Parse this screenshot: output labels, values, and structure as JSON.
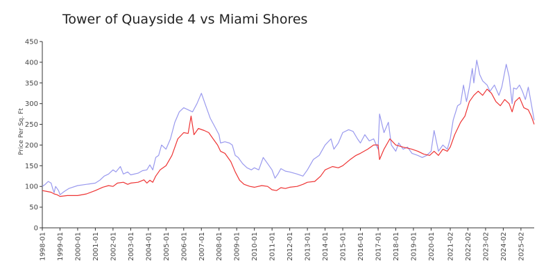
{
  "chart_data": {
    "type": "line",
    "title": "Tower of Quayside 4 vs Miami Shores",
    "xlabel": "",
    "ylabel": "Price Per Sq. Ft",
    "ylim": [
      0,
      450
    ],
    "y_ticks": [
      "0",
      "50",
      "100",
      "150",
      "200",
      "250",
      "300",
      "350",
      "400",
      "450"
    ],
    "x_range": [
      "1998-01",
      "2025-11"
    ],
    "x_ticks": [
      "1998-01",
      "1999-01",
      "2000-01",
      "2001-01",
      "2002-01",
      "2003-01",
      "2004-01",
      "2005-01",
      "2006-01",
      "2007-01",
      "2008-01",
      "2009-01",
      "2010-01",
      "2011-01",
      "2012-01",
      "2013-01",
      "2014-01",
      "2015-01",
      "2016-01",
      "2017-01",
      "2018-01",
      "2019-01",
      "2020-01",
      "2021-02",
      "2022-02",
      "2023-02",
      "2024-02",
      "2025-02"
    ],
    "grid": false,
    "series": [
      {
        "color": "#9999ee",
        "points": [
          [
            "1998-01",
            100
          ],
          [
            "1998-03",
            105
          ],
          [
            "1998-05",
            112
          ],
          [
            "1998-07",
            108
          ],
          [
            "1998-08",
            95
          ],
          [
            "1998-09",
            85
          ],
          [
            "1998-10",
            100
          ],
          [
            "1998-12",
            90
          ],
          [
            "1999-01",
            80
          ],
          [
            "1999-04",
            88
          ],
          [
            "1999-07",
            95
          ],
          [
            "2000-01",
            102
          ],
          [
            "2000-07",
            105
          ],
          [
            "2001-01",
            108
          ],
          [
            "2001-04",
            115
          ],
          [
            "2001-07",
            125
          ],
          [
            "2001-10",
            130
          ],
          [
            "2002-01",
            140
          ],
          [
            "2002-03",
            135
          ],
          [
            "2002-06",
            148
          ],
          [
            "2002-08",
            130
          ],
          [
            "2002-11",
            135
          ],
          [
            "2003-01",
            128
          ],
          [
            "2003-06",
            132
          ],
          [
            "2003-09",
            138
          ],
          [
            "2003-12",
            140
          ],
          [
            "2004-02",
            152
          ],
          [
            "2004-04",
            140
          ],
          [
            "2004-06",
            170
          ],
          [
            "2004-08",
            175
          ],
          [
            "2004-10",
            200
          ],
          [
            "2005-01",
            190
          ],
          [
            "2005-04",
            215
          ],
          [
            "2005-07",
            255
          ],
          [
            "2005-10",
            280
          ],
          [
            "2006-01",
            290
          ],
          [
            "2006-04",
            285
          ],
          [
            "2006-07",
            280
          ],
          [
            "2006-10",
            300
          ],
          [
            "2007-01",
            325
          ],
          [
            "2007-04",
            295
          ],
          [
            "2007-07",
            265
          ],
          [
            "2007-10",
            245
          ],
          [
            "2008-01",
            225
          ],
          [
            "2008-02",
            205
          ],
          [
            "2008-05",
            208
          ],
          [
            "2008-08",
            205
          ],
          [
            "2008-10",
            200
          ],
          [
            "2008-12",
            175
          ],
          [
            "2009-02",
            170
          ],
          [
            "2009-05",
            155
          ],
          [
            "2009-08",
            145
          ],
          [
            "2009-11",
            140
          ],
          [
            "2010-01",
            145
          ],
          [
            "2010-04",
            140
          ],
          [
            "2010-07",
            170
          ],
          [
            "2010-10",
            155
          ],
          [
            "2011-01",
            140
          ],
          [
            "2011-03",
            120
          ],
          [
            "2011-05",
            130
          ],
          [
            "2011-07",
            143
          ],
          [
            "2011-10",
            137
          ],
          [
            "2012-01",
            135
          ],
          [
            "2012-06",
            130
          ],
          [
            "2012-10",
            125
          ],
          [
            "2013-01",
            140
          ],
          [
            "2013-05",
            165
          ],
          [
            "2013-09",
            175
          ],
          [
            "2014-01",
            200
          ],
          [
            "2014-05",
            215
          ],
          [
            "2014-07",
            190
          ],
          [
            "2014-10",
            205
          ],
          [
            "2015-01",
            230
          ],
          [
            "2015-05",
            237
          ],
          [
            "2015-08",
            233
          ],
          [
            "2015-11",
            215
          ],
          [
            "2016-01",
            205
          ],
          [
            "2016-04",
            225
          ],
          [
            "2016-07",
            210
          ],
          [
            "2016-10",
            215
          ],
          [
            "2017-01",
            190
          ],
          [
            "2017-02",
            275
          ],
          [
            "2017-05",
            230
          ],
          [
            "2017-08",
            255
          ],
          [
            "2017-10",
            200
          ],
          [
            "2018-01",
            185
          ],
          [
            "2018-03",
            205
          ],
          [
            "2018-06",
            190
          ],
          [
            "2018-09",
            195
          ],
          [
            "2018-12",
            180
          ],
          [
            "2019-04",
            175
          ],
          [
            "2019-07",
            170
          ],
          [
            "2019-10",
            175
          ],
          [
            "2020-01",
            185
          ],
          [
            "2020-03",
            235
          ],
          [
            "2020-06",
            185
          ],
          [
            "2020-09",
            200
          ],
          [
            "2020-12",
            190
          ],
          [
            "2021-02",
            215
          ],
          [
            "2021-04",
            260
          ],
          [
            "2021-07",
            295
          ],
          [
            "2021-09",
            300
          ],
          [
            "2021-11",
            345
          ],
          [
            "2022-01",
            305
          ],
          [
            "2022-03",
            340
          ],
          [
            "2022-05",
            385
          ],
          [
            "2022-06",
            350
          ],
          [
            "2022-08",
            405
          ],
          [
            "2022-10",
            370
          ],
          [
            "2022-12",
            355
          ],
          [
            "2023-03",
            345
          ],
          [
            "2023-05",
            330
          ],
          [
            "2023-08",
            345
          ],
          [
            "2023-11",
            320
          ],
          [
            "2024-01",
            340
          ],
          [
            "2024-04",
            395
          ],
          [
            "2024-06",
            365
          ],
          [
            "2024-08",
            300
          ],
          [
            "2024-09",
            338
          ],
          [
            "2024-11",
            335
          ],
          [
            "2025-01",
            345
          ],
          [
            "2025-03",
            330
          ],
          [
            "2025-05",
            310
          ],
          [
            "2025-07",
            340
          ],
          [
            "2025-09",
            300
          ],
          [
            "2025-11",
            260
          ]
        ]
      },
      {
        "color": "#ee3333",
        "points": [
          [
            "1998-01",
            90
          ],
          [
            "1998-04",
            88
          ],
          [
            "1998-07",
            86
          ],
          [
            "1998-09",
            82
          ],
          [
            "1998-11",
            80
          ],
          [
            "1999-01",
            76
          ],
          [
            "1999-06",
            78
          ],
          [
            "2000-01",
            78
          ],
          [
            "2000-07",
            82
          ],
          [
            "2001-01",
            90
          ],
          [
            "2001-06",
            98
          ],
          [
            "2001-10",
            102
          ],
          [
            "2002-01",
            100
          ],
          [
            "2002-04",
            108
          ],
          [
            "2002-08",
            110
          ],
          [
            "2002-11",
            105
          ],
          [
            "2003-01",
            108
          ],
          [
            "2003-06",
            110
          ],
          [
            "2003-10",
            116
          ],
          [
            "2003-12",
            108
          ],
          [
            "2004-02",
            115
          ],
          [
            "2004-04",
            110
          ],
          [
            "2004-06",
            125
          ],
          [
            "2004-09",
            140
          ],
          [
            "2005-01",
            150
          ],
          [
            "2005-05",
            175
          ],
          [
            "2005-09",
            215
          ],
          [
            "2006-01",
            230
          ],
          [
            "2006-04",
            228
          ],
          [
            "2006-06",
            270
          ],
          [
            "2006-08",
            225
          ],
          [
            "2006-11",
            240
          ],
          [
            "2007-03",
            235
          ],
          [
            "2007-06",
            230
          ],
          [
            "2007-09",
            215
          ],
          [
            "2007-12",
            200
          ],
          [
            "2008-02",
            185
          ],
          [
            "2008-05",
            180
          ],
          [
            "2008-09",
            160
          ],
          [
            "2008-12",
            135
          ],
          [
            "2009-03",
            115
          ],
          [
            "2009-06",
            105
          ],
          [
            "2009-10",
            100
          ],
          [
            "2010-01",
            98
          ],
          [
            "2010-06",
            102
          ],
          [
            "2010-10",
            100
          ],
          [
            "2011-01",
            92
          ],
          [
            "2011-04",
            90
          ],
          [
            "2011-07",
            97
          ],
          [
            "2011-10",
            95
          ],
          [
            "2012-01",
            98
          ],
          [
            "2012-06",
            100
          ],
          [
            "2012-10",
            105
          ],
          [
            "2013-01",
            110
          ],
          [
            "2013-06",
            112
          ],
          [
            "2013-10",
            125
          ],
          [
            "2014-01",
            140
          ],
          [
            "2014-06",
            148
          ],
          [
            "2014-10",
            145
          ],
          [
            "2015-01",
            150
          ],
          [
            "2015-06",
            165
          ],
          [
            "2015-10",
            175
          ],
          [
            "2016-01",
            180
          ],
          [
            "2016-06",
            190
          ],
          [
            "2016-10",
            200
          ],
          [
            "2017-01",
            200
          ],
          [
            "2017-02",
            165
          ],
          [
            "2017-05",
            190
          ],
          [
            "2017-09",
            215
          ],
          [
            "2018-01",
            200
          ],
          [
            "2018-06",
            195
          ],
          [
            "2018-12",
            190
          ],
          [
            "2019-04",
            185
          ],
          [
            "2019-08",
            178
          ],
          [
            "2019-12",
            175
          ],
          [
            "2020-03",
            185
          ],
          [
            "2020-06",
            175
          ],
          [
            "2020-09",
            190
          ],
          [
            "2020-12",
            185
          ],
          [
            "2021-02",
            195
          ],
          [
            "2021-05",
            225
          ],
          [
            "2021-09",
            255
          ],
          [
            "2021-12",
            270
          ],
          [
            "2022-03",
            305
          ],
          [
            "2022-06",
            320
          ],
          [
            "2022-09",
            330
          ],
          [
            "2022-12",
            320
          ],
          [
            "2023-03",
            335
          ],
          [
            "2023-06",
            325
          ],
          [
            "2023-09",
            305
          ],
          [
            "2023-12",
            295
          ],
          [
            "2024-03",
            310
          ],
          [
            "2024-06",
            300
          ],
          [
            "2024-08",
            280
          ],
          [
            "2024-10",
            305
          ],
          [
            "2025-01",
            315
          ],
          [
            "2025-04",
            290
          ],
          [
            "2025-07",
            285
          ],
          [
            "2025-09",
            270
          ],
          [
            "2025-11",
            250
          ]
        ]
      }
    ]
  }
}
